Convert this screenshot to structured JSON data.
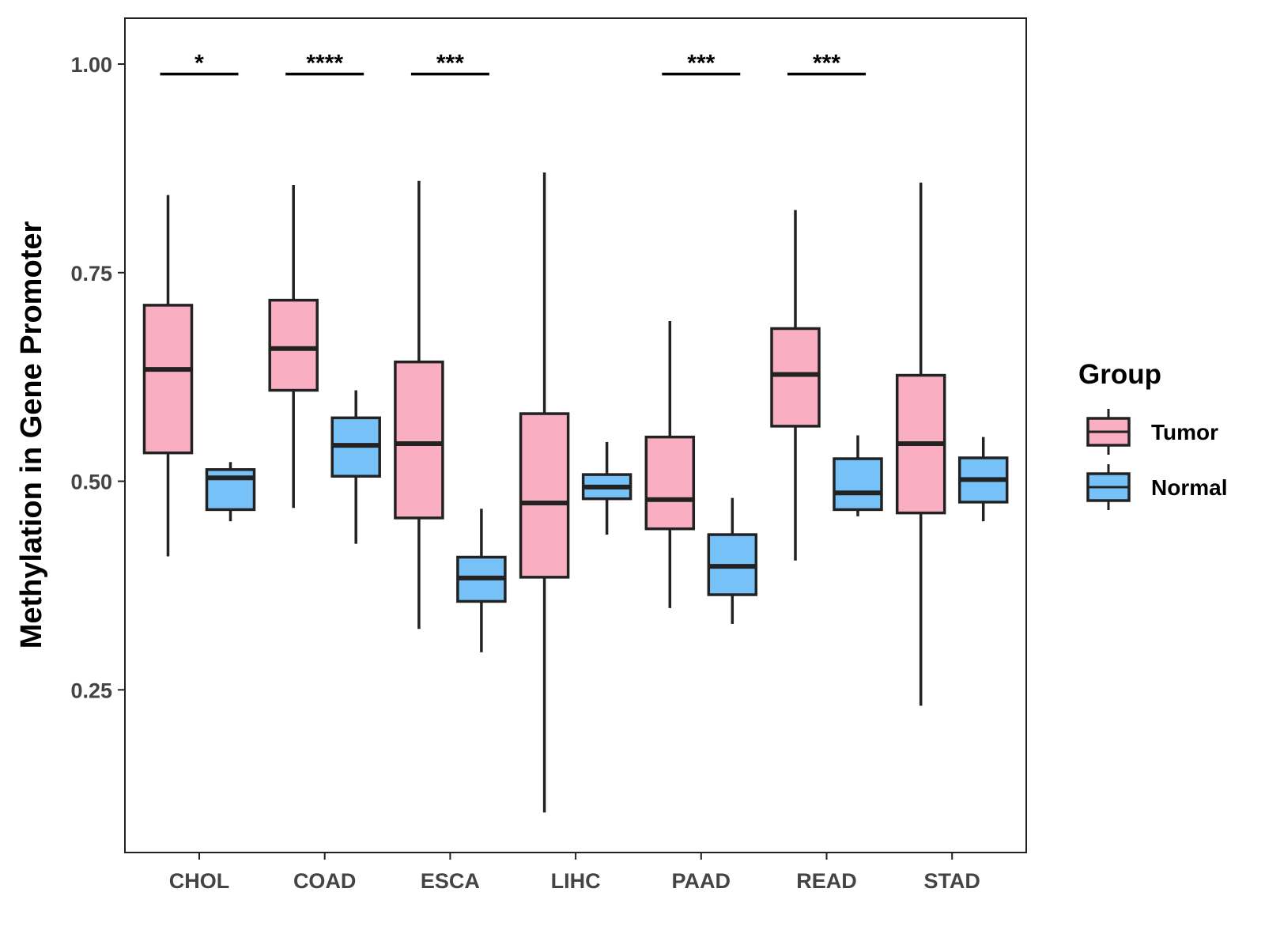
{
  "chart_data": {
    "type": "boxplot",
    "ylabel": "Methylation in Gene Promoter",
    "xlabel": "",
    "ylim": [
      0.055,
      1.055
    ],
    "yticks": [
      0.25,
      0.5,
      0.75,
      1.0
    ],
    "ytick_labels": [
      "0.25",
      "0.50",
      "0.75",
      "1.00"
    ],
    "grid": false,
    "categories": [
      "CHOL",
      "COAD",
      "ESCA",
      "LIHC",
      "PAAD",
      "READ",
      "STAD"
    ],
    "legend": {
      "title": "Group",
      "position": "right",
      "entries": [
        {
          "name": "Tumor",
          "color": "#F9AFC1"
        },
        {
          "name": "Normal",
          "color": "#76C1F7"
        }
      ]
    },
    "series": [
      {
        "name": "Tumor",
        "color": "#F9AFC1",
        "boxes": [
          {
            "whisker_low": 0.41,
            "q1": 0.534,
            "median": 0.634,
            "q3": 0.711,
            "whisker_high": 0.843
          },
          {
            "whisker_low": 0.468,
            "q1": 0.609,
            "median": 0.659,
            "q3": 0.717,
            "whisker_high": 0.855
          },
          {
            "whisker_low": 0.323,
            "q1": 0.456,
            "median": 0.545,
            "q3": 0.643,
            "whisker_high": 0.86
          },
          {
            "whisker_low": 0.103,
            "q1": 0.385,
            "median": 0.474,
            "q3": 0.581,
            "whisker_high": 0.87
          },
          {
            "whisker_low": 0.348,
            "q1": 0.443,
            "median": 0.478,
            "q3": 0.553,
            "whisker_high": 0.692
          },
          {
            "whisker_low": 0.405,
            "q1": 0.566,
            "median": 0.628,
            "q3": 0.683,
            "whisker_high": 0.825
          },
          {
            "whisker_low": 0.231,
            "q1": 0.462,
            "median": 0.545,
            "q3": 0.627,
            "whisker_high": 0.858
          }
        ]
      },
      {
        "name": "Normal",
        "color": "#76C1F7",
        "boxes": [
          {
            "whisker_low": 0.452,
            "q1": 0.466,
            "median": 0.504,
            "q3": 0.514,
            "whisker_high": 0.523
          },
          {
            "whisker_low": 0.425,
            "q1": 0.506,
            "median": 0.543,
            "q3": 0.576,
            "whisker_high": 0.609
          },
          {
            "whisker_low": 0.295,
            "q1": 0.356,
            "median": 0.384,
            "q3": 0.409,
            "whisker_high": 0.467
          },
          {
            "whisker_low": 0.436,
            "q1": 0.479,
            "median": 0.493,
            "q3": 0.508,
            "whisker_high": 0.547
          },
          {
            "whisker_low": 0.329,
            "q1": 0.364,
            "median": 0.398,
            "q3": 0.436,
            "whisker_high": 0.48
          },
          {
            "whisker_low": 0.458,
            "q1": 0.466,
            "median": 0.486,
            "q3": 0.527,
            "whisker_high": 0.555
          },
          {
            "whisker_low": 0.452,
            "q1": 0.475,
            "median": 0.502,
            "q3": 0.528,
            "whisker_high": 0.553
          }
        ]
      }
    ],
    "significance": [
      {
        "category": "CHOL",
        "label": "*",
        "y": 0.988
      },
      {
        "category": "COAD",
        "label": "****",
        "y": 0.988
      },
      {
        "category": "ESCA",
        "label": "***",
        "y": 0.988
      },
      {
        "category": "PAAD",
        "label": "***",
        "y": 0.988
      },
      {
        "category": "READ",
        "label": "***",
        "y": 0.988
      }
    ]
  }
}
